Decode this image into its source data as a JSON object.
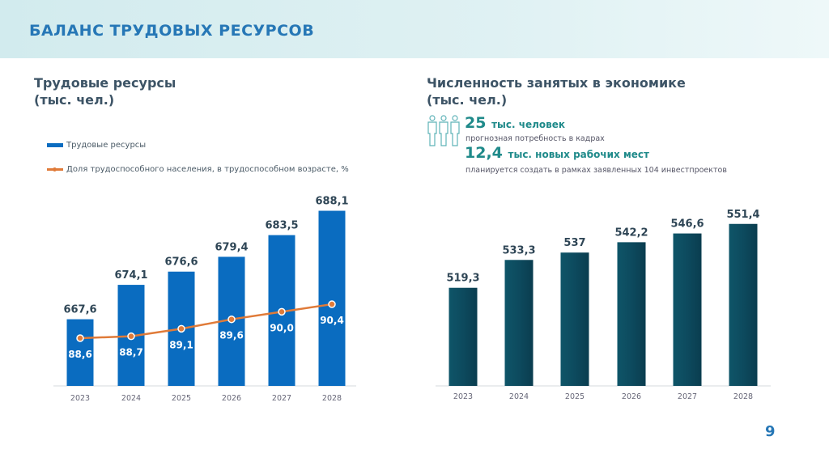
{
  "slide": {
    "title": "БАЛАНС ТРУДОВЫХ РЕСУРСОВ",
    "page_number": "9"
  },
  "colors": {
    "bar_left": "#0a6cc0",
    "bar_right": "#0d4a5e",
    "line": "#e07b39",
    "title": "#2677b6"
  },
  "left_panel": {
    "title_line1": "Трудовые ресурсы",
    "title_line2": "(тыс. чел.)"
  },
  "right_panel": {
    "title_line1": "Численность занятых в экономике",
    "title_line2": "(тыс. чел.)",
    "icon": "people-group-icon",
    "stat1_value": "25",
    "stat1_unit": "тыс. человек",
    "stat1_desc": "прогнозная потребность в кадрах",
    "stat2_value": "12,4",
    "stat2_unit": "тыс. новых рабочих мест",
    "stat2_desc": "планируется создать в рамках заявленных 104 инвестпроектов"
  },
  "chart_data": [
    {
      "type": "bar+line",
      "title": "Трудовые ресурсы (тыс. чел.)",
      "categories": [
        "2023",
        "2024",
        "2025",
        "2026",
        "2027",
        "2028"
      ],
      "legend_position": "top-left",
      "grid": false,
      "series": [
        {
          "name": "Трудовые ресурсы",
          "type": "bar",
          "values": [
            667.6,
            674.1,
            676.6,
            679.4,
            683.5,
            688.1
          ],
          "labels": [
            "667,6",
            "674,1",
            "676,6",
            "679,4",
            "683,5",
            "688,1"
          ]
        },
        {
          "name": "Доля трудоспособного населения, в трудоспособном возрасте, %",
          "type": "line",
          "values": [
            88.6,
            88.7,
            89.1,
            89.6,
            90.0,
            90.4
          ],
          "labels": [
            "88,6",
            "88,7",
            "89,1",
            "89,6",
            "90,0",
            "90,4"
          ]
        }
      ]
    },
    {
      "type": "bar",
      "title": "Численность занятых в экономике (тыс. чел.)",
      "categories": [
        "2023",
        "2024",
        "2025",
        "2026",
        "2027",
        "2028"
      ],
      "grid": false,
      "values": [
        519.3,
        533.3,
        537,
        542.2,
        546.6,
        551.4
      ],
      "labels": [
        "519,3",
        "533,3",
        "537",
        "542,2",
        "546,6",
        "551,4"
      ]
    }
  ]
}
